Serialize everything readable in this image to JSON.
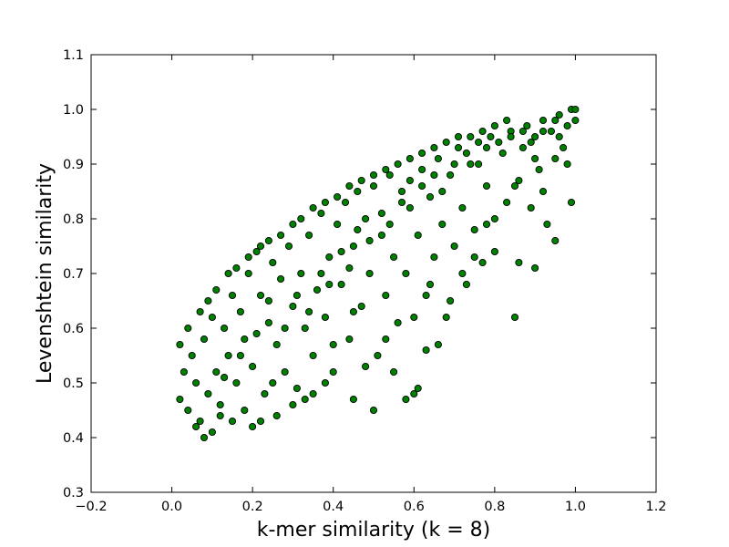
{
  "chart_data": {
    "type": "scatter",
    "xlabel": "k-mer similarity (k = 8)",
    "ylabel": "Levenshtein similarity",
    "xlim": [
      -0.2,
      1.2
    ],
    "ylim": [
      0.3,
      1.1
    ],
    "xticks": [
      -0.2,
      0.0,
      0.2,
      0.4,
      0.6,
      0.8,
      1.0,
      1.2
    ],
    "yticks": [
      0.3,
      0.4,
      0.5,
      0.6,
      0.7,
      0.8,
      0.9,
      1.0,
      1.1
    ],
    "xtick_labels": [
      "−0.2",
      "0.0",
      "0.2",
      "0.4",
      "0.6",
      "0.8",
      "1.0",
      "1.2"
    ],
    "ytick_labels": [
      "0.3",
      "0.4",
      "0.5",
      "0.6",
      "0.7",
      "0.8",
      "0.9",
      "1.0",
      "1.1"
    ],
    "grid": false,
    "marker_color": "#008000",
    "marker_edge_color": "#000000",
    "series": [
      {
        "points": [
          [
            0.02,
            0.47
          ],
          [
            0.03,
            0.52
          ],
          [
            0.04,
            0.45
          ],
          [
            0.05,
            0.55
          ],
          [
            0.06,
            0.5
          ],
          [
            0.07,
            0.43
          ],
          [
            0.08,
            0.58
          ],
          [
            0.09,
            0.48
          ],
          [
            0.1,
            0.62
          ],
          [
            0.11,
            0.52
          ],
          [
            0.12,
            0.46
          ],
          [
            0.13,
            0.6
          ],
          [
            0.14,
            0.55
          ],
          [
            0.15,
            0.66
          ],
          [
            0.16,
            0.5
          ],
          [
            0.17,
            0.63
          ],
          [
            0.18,
            0.58
          ],
          [
            0.19,
            0.7
          ],
          [
            0.2,
            0.53
          ],
          [
            0.21,
            0.74
          ],
          [
            0.22,
            0.66
          ],
          [
            0.23,
            0.48
          ],
          [
            0.24,
            0.61
          ],
          [
            0.25,
            0.72
          ],
          [
            0.26,
            0.57
          ],
          [
            0.27,
            0.69
          ],
          [
            0.28,
            0.52
          ],
          [
            0.29,
            0.75
          ],
          [
            0.3,
            0.64
          ],
          [
            0.31,
            0.49
          ],
          [
            0.32,
            0.7
          ],
          [
            0.33,
            0.6
          ],
          [
            0.34,
            0.77
          ],
          [
            0.35,
            0.55
          ],
          [
            0.36,
            0.67
          ],
          [
            0.37,
            0.81
          ],
          [
            0.38,
            0.62
          ],
          [
            0.39,
            0.73
          ],
          [
            0.4,
            0.52
          ],
          [
            0.41,
            0.79
          ],
          [
            0.42,
            0.68
          ],
          [
            0.43,
            0.83
          ],
          [
            0.44,
            0.58
          ],
          [
            0.45,
            0.75
          ],
          [
            0.46,
            0.85
          ],
          [
            0.47,
            0.64
          ],
          [
            0.48,
            0.8
          ],
          [
            0.49,
            0.7
          ],
          [
            0.5,
            0.86
          ],
          [
            0.51,
            0.55
          ],
          [
            0.52,
            0.77
          ],
          [
            0.53,
            0.66
          ],
          [
            0.54,
            0.88
          ],
          [
            0.55,
            0.73
          ],
          [
            0.56,
            0.61
          ],
          [
            0.57,
            0.83
          ],
          [
            0.58,
            0.7
          ],
          [
            0.59,
            0.87
          ],
          [
            0.6,
            0.48
          ],
          [
            0.61,
            0.77
          ],
          [
            0.62,
            0.89
          ],
          [
            0.63,
            0.66
          ],
          [
            0.64,
            0.84
          ],
          [
            0.65,
            0.73
          ],
          [
            0.66,
            0.91
          ],
          [
            0.67,
            0.79
          ],
          [
            0.68,
            0.62
          ],
          [
            0.69,
            0.88
          ],
          [
            0.7,
            0.75
          ],
          [
            0.71,
            0.93
          ],
          [
            0.72,
            0.82
          ],
          [
            0.73,
            0.68
          ],
          [
            0.74,
            0.9
          ],
          [
            0.75,
            0.78
          ],
          [
            0.76,
            0.94
          ],
          [
            0.77,
            0.72
          ],
          [
            0.78,
            0.86
          ],
          [
            0.79,
            0.95
          ],
          [
            0.8,
            0.8
          ],
          [
            0.82,
            0.92
          ],
          [
            0.84,
            0.96
          ],
          [
            0.85,
            0.86
          ],
          [
            0.86,
            0.72
          ],
          [
            0.87,
            0.93
          ],
          [
            0.88,
            0.97
          ],
          [
            0.89,
            0.82
          ],
          [
            0.9,
            0.95
          ],
          [
            0.91,
            0.89
          ],
          [
            0.92,
            0.98
          ],
          [
            0.93,
            0.79
          ],
          [
            0.94,
            0.96
          ],
          [
            0.95,
            0.91
          ],
          [
            0.96,
            0.99
          ],
          [
            0.97,
            0.93
          ],
          [
            0.98,
            0.97
          ],
          [
            0.99,
            1.0
          ],
          [
            1.0,
            0.98
          ],
          [
            0.99,
            0.83
          ],
          [
            0.95,
            0.76
          ],
          [
            0.9,
            0.71
          ],
          [
            0.85,
            0.62
          ],
          [
            0.63,
            0.56
          ],
          [
            0.58,
            0.47
          ],
          [
            0.61,
            0.49
          ],
          [
            0.5,
            0.45
          ],
          [
            0.45,
            0.47
          ],
          [
            0.38,
            0.5
          ],
          [
            0.33,
            0.47
          ],
          [
            0.26,
            0.44
          ],
          [
            0.2,
            0.42
          ],
          [
            0.15,
            0.43
          ],
          [
            0.1,
            0.41
          ],
          [
            0.06,
            0.42
          ],
          [
            0.08,
            0.4
          ],
          [
            0.12,
            0.44
          ],
          [
            0.18,
            0.45
          ],
          [
            0.22,
            0.43
          ],
          [
            0.25,
            0.5
          ],
          [
            0.3,
            0.46
          ],
          [
            0.35,
            0.48
          ],
          [
            0.4,
            0.57
          ],
          [
            0.45,
            0.63
          ],
          [
            0.48,
            0.53
          ],
          [
            0.53,
            0.58
          ],
          [
            0.55,
            0.52
          ],
          [
            0.6,
            0.62
          ],
          [
            0.64,
            0.68
          ],
          [
            0.66,
            0.57
          ],
          [
            0.69,
            0.65
          ],
          [
            0.72,
            0.7
          ],
          [
            0.75,
            0.73
          ],
          [
            0.78,
            0.79
          ],
          [
            0.8,
            0.74
          ],
          [
            0.83,
            0.83
          ],
          [
            0.86,
            0.87
          ],
          [
            0.9,
            0.91
          ],
          [
            0.92,
            0.85
          ],
          [
            0.96,
            0.95
          ],
          [
            0.98,
            0.9
          ],
          [
            1.0,
            1.0
          ],
          [
            0.02,
            0.57
          ],
          [
            0.04,
            0.6
          ],
          [
            0.07,
            0.63
          ],
          [
            0.09,
            0.65
          ],
          [
            0.11,
            0.67
          ],
          [
            0.14,
            0.7
          ],
          [
            0.16,
            0.71
          ],
          [
            0.19,
            0.73
          ],
          [
            0.22,
            0.75
          ],
          [
            0.24,
            0.76
          ],
          [
            0.27,
            0.77
          ],
          [
            0.3,
            0.79
          ],
          [
            0.32,
            0.8
          ],
          [
            0.35,
            0.82
          ],
          [
            0.38,
            0.83
          ],
          [
            0.41,
            0.84
          ],
          [
            0.44,
            0.86
          ],
          [
            0.47,
            0.87
          ],
          [
            0.5,
            0.88
          ],
          [
            0.53,
            0.89
          ],
          [
            0.56,
            0.9
          ],
          [
            0.59,
            0.91
          ],
          [
            0.62,
            0.92
          ],
          [
            0.65,
            0.93
          ],
          [
            0.68,
            0.94
          ],
          [
            0.71,
            0.95
          ],
          [
            0.74,
            0.95
          ],
          [
            0.77,
            0.96
          ],
          [
            0.8,
            0.97
          ],
          [
            0.83,
            0.98
          ],
          [
            0.13,
            0.51
          ],
          [
            0.17,
            0.55
          ],
          [
            0.21,
            0.59
          ],
          [
            0.24,
            0.65
          ],
          [
            0.28,
            0.6
          ],
          [
            0.31,
            0.66
          ],
          [
            0.34,
            0.63
          ],
          [
            0.37,
            0.7
          ],
          [
            0.39,
            0.68
          ],
          [
            0.42,
            0.74
          ],
          [
            0.44,
            0.71
          ],
          [
            0.46,
            0.78
          ],
          [
            0.49,
            0.76
          ],
          [
            0.52,
            0.81
          ],
          [
            0.54,
            0.79
          ],
          [
            0.57,
            0.85
          ],
          [
            0.59,
            0.82
          ],
          [
            0.62,
            0.86
          ],
          [
            0.65,
            0.88
          ],
          [
            0.67,
            0.85
          ],
          [
            0.7,
            0.9
          ],
          [
            0.73,
            0.92
          ],
          [
            0.76,
            0.9
          ],
          [
            0.78,
            0.93
          ],
          [
            0.81,
            0.94
          ],
          [
            0.84,
            0.95
          ],
          [
            0.87,
            0.96
          ],
          [
            0.89,
            0.94
          ],
          [
            0.92,
            0.96
          ],
          [
            0.95,
            0.98
          ]
        ]
      }
    ]
  }
}
